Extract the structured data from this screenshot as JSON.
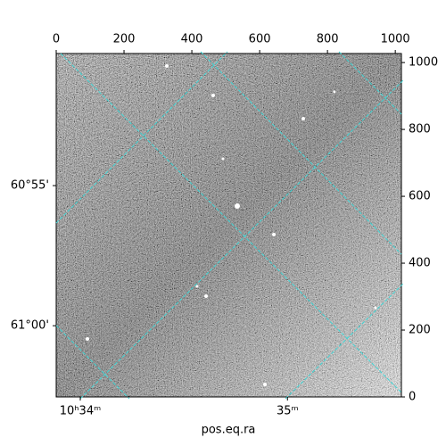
{
  "chart_data": {
    "type": "image",
    "xlabel": "pos.eq.ra",
    "xlim": [
      0,
      1018
    ],
    "ylim": [
      0,
      1027
    ],
    "xticks": [
      0,
      200,
      400,
      600,
      800,
      1000
    ],
    "yticks": [
      0,
      200,
      400,
      600,
      800,
      1000
    ],
    "ra_ticks": [
      {
        "value": 71,
        "label": "10ʰ34ᵐ"
      },
      {
        "value": 682,
        "label": "35ᵐ"
      }
    ],
    "dec_ticks": [
      {
        "value": 632,
        "label": "60°55'"
      },
      {
        "value": 213,
        "label": "61°00'"
      }
    ]
  }
}
